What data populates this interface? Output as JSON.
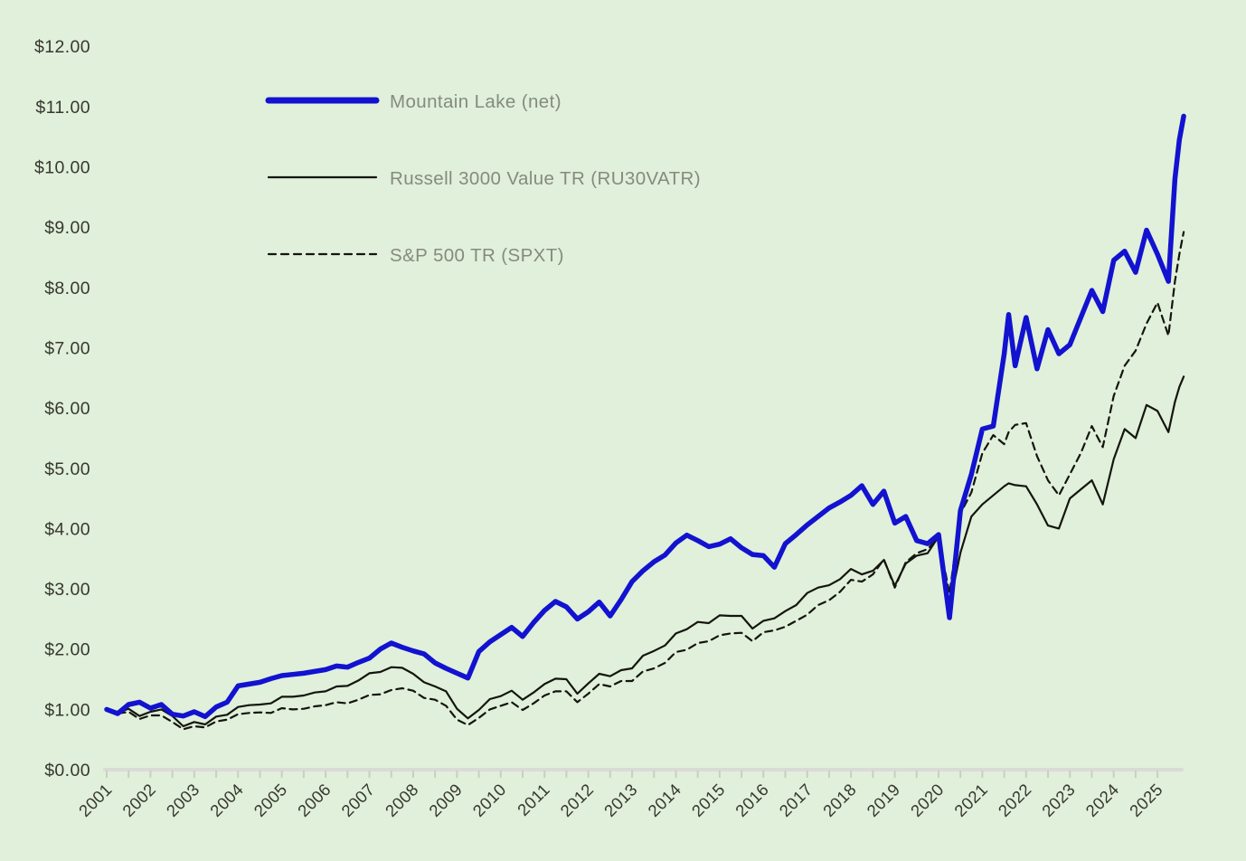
{
  "page": {
    "background_color": "#e0f0da"
  },
  "legend": {
    "position": "upper-left",
    "text_color": "#868b7d",
    "items": [
      {
        "series_index": 0,
        "swatch": "thick-solid-line",
        "swatch_thickness": 7
      },
      {
        "series_index": 1,
        "swatch": "thin-solid-line",
        "swatch_thickness": 2.2
      },
      {
        "series_index": 2,
        "swatch": "dashed-line",
        "swatch_thickness": 2.2
      }
    ]
  },
  "chart_data": {
    "type": "line",
    "title": "",
    "xlabel": "",
    "ylabel": "",
    "grid": false,
    "legend_position": "upper-left",
    "axis_line_color": "#dadad7",
    "tick_mark_color": "#c9cec5",
    "tick_text_color": "#37372f",
    "x_axis": {
      "range": [
        2001,
        2025.9
      ],
      "ticks": [
        2001,
        2002,
        2003,
        2004,
        2005,
        2006,
        2007,
        2008,
        2009,
        2010,
        2011,
        2012,
        2013,
        2014,
        2015,
        2016,
        2017,
        2018,
        2019,
        2020,
        2021,
        2022,
        2023,
        2024,
        2025
      ],
      "ticklabels": [
        "2001",
        "2002",
        "2003",
        "2004",
        "2005",
        "2006",
        "2007",
        "2008",
        "2009",
        "2010",
        "2011",
        "2012",
        "2013",
        "2014",
        "2015",
        "2016",
        "2017",
        "2018",
        "2019",
        "2020",
        "2021",
        "2022",
        "2023",
        "2024",
        "2025"
      ],
      "minor_tick_step": 0.5,
      "ticklabel_rotation_deg": 45
    },
    "y_axis": {
      "range": [
        0,
        12
      ],
      "ticks": [
        0,
        1,
        2,
        3,
        4,
        5,
        6,
        7,
        8,
        9,
        10,
        11,
        12
      ],
      "ticklabels": [
        "$0.00",
        "$1.00",
        "$2.00",
        "$3.00",
        "$4.00",
        "$5.00",
        "$6.00",
        "$7.00",
        "$8.00",
        "$9.00",
        "$10.00",
        "$11.00",
        "$12.00"
      ]
    },
    "x_unit": "decimal_year_quarterly",
    "x": [
      2001,
      2001.25,
      2001.5,
      2001.75,
      2002,
      2002.25,
      2002.5,
      2002.75,
      2003,
      2003.25,
      2003.5,
      2003.75,
      2004,
      2004.25,
      2004.5,
      2004.75,
      2005,
      2005.25,
      2005.5,
      2005.75,
      2006,
      2006.25,
      2006.5,
      2006.75,
      2007,
      2007.25,
      2007.5,
      2007.75,
      2008,
      2008.25,
      2008.5,
      2008.75,
      2009,
      2009.25,
      2009.5,
      2009.75,
      2010,
      2010.25,
      2010.5,
      2010.75,
      2011,
      2011.25,
      2011.5,
      2011.75,
      2012,
      2012.25,
      2012.5,
      2012.75,
      2013,
      2013.25,
      2013.5,
      2013.75,
      2014,
      2014.25,
      2014.5,
      2014.75,
      2015,
      2015.25,
      2015.5,
      2015.75,
      2016,
      2016.25,
      2016.5,
      2016.75,
      2017,
      2017.25,
      2017.5,
      2017.75,
      2018,
      2018.25,
      2018.5,
      2018.75,
      2019,
      2019.25,
      2019.5,
      2019.75,
      2020,
      2020.25,
      2020.5,
      2020.75,
      2021,
      2021.25,
      2021.5,
      2021.6,
      2021.75,
      2022,
      2022.25,
      2022.5,
      2022.75,
      2023,
      2023.25,
      2023.5,
      2023.75,
      2024,
      2024.25,
      2024.5,
      2024.75,
      2025,
      2025.25,
      2025.4,
      2025.5,
      2025.6
    ],
    "series": [
      {
        "id": "mountain-lake-net",
        "name": "Mountain Lake (net)",
        "color": "#1212d0",
        "style": "solid",
        "stroke_width": 5.5,
        "start_value": "$1.00",
        "end_value": "$10.84",
        "values": [
          1.0,
          0.93,
          1.08,
          1.12,
          1.02,
          1.08,
          0.92,
          0.89,
          0.96,
          0.88,
          1.04,
          1.12,
          1.39,
          1.42,
          1.45,
          1.51,
          1.56,
          1.58,
          1.6,
          1.63,
          1.66,
          1.72,
          1.7,
          1.78,
          1.85,
          2.0,
          2.1,
          2.03,
          1.97,
          1.92,
          1.77,
          1.68,
          1.6,
          1.52,
          1.96,
          2.12,
          2.24,
          2.36,
          2.21,
          2.44,
          2.64,
          2.79,
          2.7,
          2.5,
          2.62,
          2.78,
          2.55,
          2.82,
          3.12,
          3.3,
          3.45,
          3.56,
          3.76,
          3.89,
          3.8,
          3.7,
          3.74,
          3.83,
          3.68,
          3.57,
          3.55,
          3.36,
          3.75,
          3.9,
          4.06,
          4.2,
          4.34,
          4.44,
          4.55,
          4.71,
          4.4,
          4.62,
          4.09,
          4.2,
          3.8,
          3.75,
          3.9,
          2.52,
          4.3,
          4.9,
          5.65,
          5.7,
          6.9,
          7.55,
          6.7,
          7.5,
          6.65,
          7.3,
          6.9,
          7.05,
          7.5,
          7.95,
          7.6,
          8.45,
          8.6,
          8.25,
          8.95,
          8.55,
          8.1,
          9.8,
          10.45,
          10.84
        ]
      },
      {
        "id": "russell-3000-value-tr",
        "name": "Russell 3000 Value TR (RU30VATR)",
        "color": "#15150f",
        "style": "solid",
        "stroke_width": 2.2,
        "start_value": "$1.00",
        "end_value": "$6.52",
        "values": [
          1.0,
          0.95,
          1.01,
          0.89,
          0.96,
          1.0,
          0.89,
          0.72,
          0.79,
          0.75,
          0.88,
          0.91,
          1.04,
          1.07,
          1.08,
          1.1,
          1.21,
          1.21,
          1.23,
          1.28,
          1.3,
          1.38,
          1.39,
          1.48,
          1.6,
          1.62,
          1.7,
          1.69,
          1.59,
          1.45,
          1.38,
          1.3,
          1.01,
          0.85,
          0.99,
          1.17,
          1.22,
          1.31,
          1.16,
          1.28,
          1.42,
          1.51,
          1.5,
          1.26,
          1.43,
          1.59,
          1.55,
          1.65,
          1.68,
          1.89,
          1.97,
          2.06,
          2.26,
          2.33,
          2.45,
          2.43,
          2.56,
          2.55,
          2.55,
          2.34,
          2.47,
          2.51,
          2.63,
          2.73,
          2.93,
          3.02,
          3.06,
          3.16,
          3.33,
          3.24,
          3.3,
          3.48,
          3.05,
          3.42,
          3.55,
          3.59,
          3.87,
          2.72,
          3.6,
          4.2,
          4.4,
          4.55,
          4.7,
          4.75,
          4.72,
          4.7,
          4.4,
          4.05,
          4.0,
          4.5,
          4.65,
          4.8,
          4.4,
          5.15,
          5.65,
          5.5,
          6.05,
          5.95,
          5.6,
          6.1,
          6.35,
          6.52
        ]
      },
      {
        "id": "sp-500-tr",
        "name": "S&P 500 TR (SPXT)",
        "color": "#15150f",
        "style": "dashed",
        "stroke_width": 2.2,
        "dash_pattern": "8 5.5",
        "start_value": "$1.00",
        "end_value": "$8.92",
        "values": [
          1.0,
          0.93,
          0.96,
          0.84,
          0.9,
          0.9,
          0.79,
          0.67,
          0.72,
          0.7,
          0.8,
          0.83,
          0.92,
          0.94,
          0.95,
          0.94,
          1.02,
          1.0,
          1.01,
          1.05,
          1.07,
          1.12,
          1.1,
          1.16,
          1.24,
          1.25,
          1.32,
          1.35,
          1.31,
          1.19,
          1.16,
          1.06,
          0.83,
          0.74,
          0.86,
          1.0,
          1.06,
          1.12,
          0.99,
          1.1,
          1.23,
          1.3,
          1.3,
          1.12,
          1.26,
          1.42,
          1.38,
          1.47,
          1.47,
          1.63,
          1.68,
          1.77,
          1.95,
          1.99,
          2.1,
          2.13,
          2.23,
          2.26,
          2.27,
          2.13,
          2.28,
          2.31,
          2.37,
          2.47,
          2.57,
          2.73,
          2.81,
          2.95,
          3.15,
          3.12,
          3.24,
          3.49,
          3.02,
          3.44,
          3.59,
          3.66,
          3.85,
          2.92,
          4.25,
          4.6,
          5.25,
          5.55,
          5.4,
          5.6,
          5.72,
          5.75,
          5.2,
          4.8,
          4.55,
          4.9,
          5.25,
          5.7,
          5.35,
          6.2,
          6.7,
          6.95,
          7.4,
          7.75,
          7.2,
          8.1,
          8.55,
          8.92
        ]
      }
    ]
  }
}
